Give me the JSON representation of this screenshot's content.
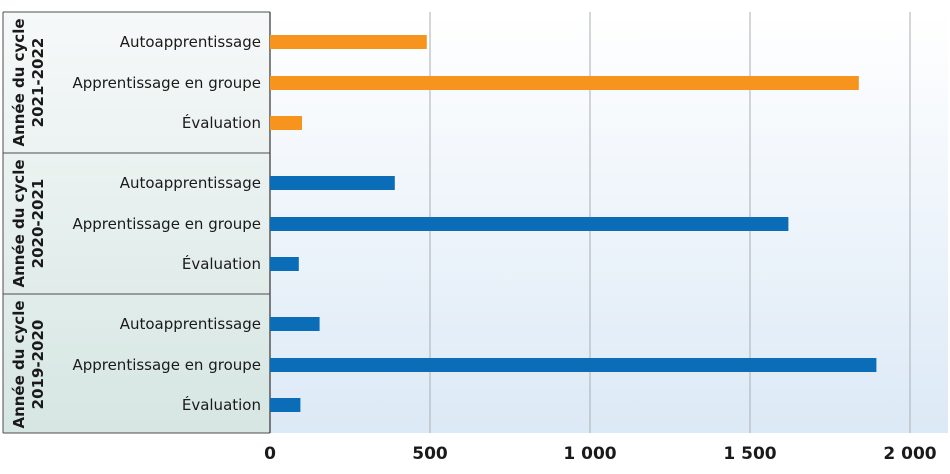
{
  "chart_data": {
    "type": "bar",
    "orientation": "horizontal",
    "xlim": [
      0,
      2000
    ],
    "x_ticks": [
      0,
      500,
      1000,
      1500,
      2000
    ],
    "x_tick_labels": [
      "0",
      "500",
      "1 000",
      "1 500",
      "2 000"
    ],
    "grid": "vertical",
    "categories": [
      "Autoapprentissage",
      "Apprentissage en groupe",
      "Évaluation"
    ],
    "groups": [
      {
        "label_line1": "Année du cycle",
        "label_line2": "2021-2022",
        "color": "#f7941d",
        "values": [
          490,
          1840,
          100
        ]
      },
      {
        "label_line1": "Année du cycle",
        "label_line2": "2020-2021",
        "color": "#0b6db7",
        "values": [
          390,
          1620,
          90
        ]
      },
      {
        "label_line1": "Année du cycle",
        "label_line2": "2019-2020",
        "color": "#0b6db7",
        "values": [
          155,
          1895,
          95
        ]
      }
    ]
  }
}
